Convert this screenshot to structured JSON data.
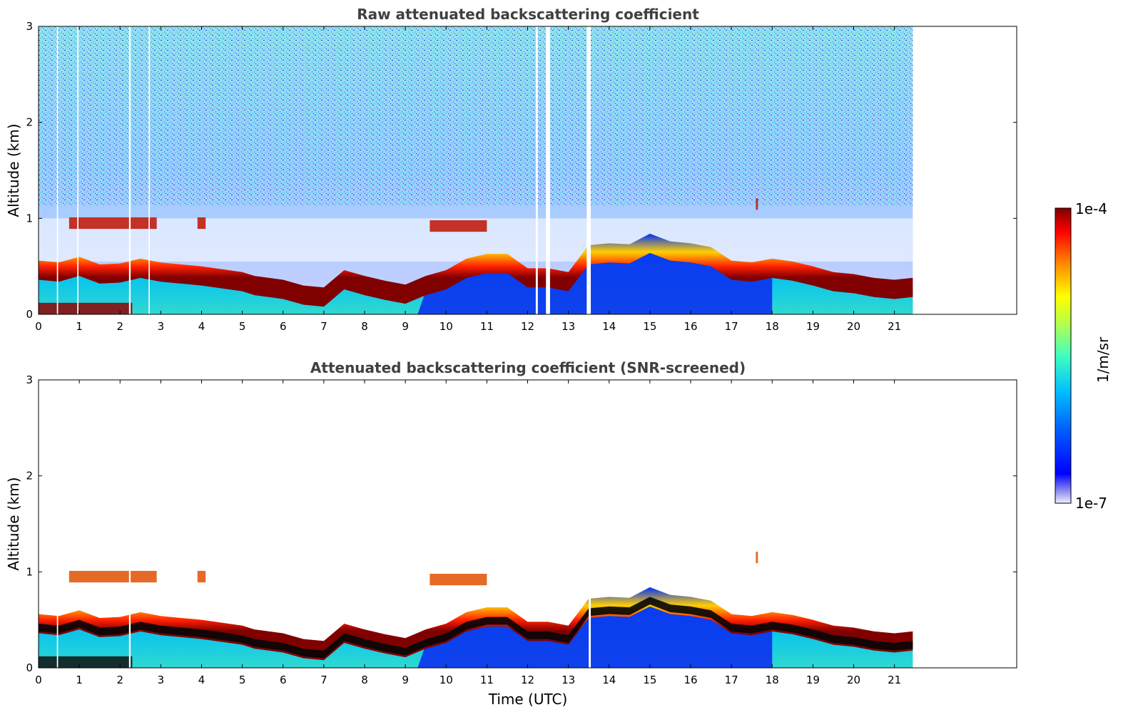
{
  "chart_data": [
    {
      "type": "heatmap",
      "title": "Raw attenuated backscattering coefficient",
      "xlabel": "",
      "ylabel": "Altitude (km)",
      "xlim": [
        0,
        24
      ],
      "ylim": [
        0,
        3
      ],
      "xticks": [
        "0",
        "1",
        "2",
        "3",
        "4",
        "5",
        "6",
        "7",
        "8",
        "9",
        "10",
        "11",
        "12",
        "13",
        "14",
        "15",
        "16",
        "17",
        "18",
        "19",
        "20",
        "21"
      ],
      "yticks": [
        "0",
        "1",
        "2",
        "3"
      ],
      "data_end_hour": 21.45,
      "layer_top_km": [
        [
          0.0,
          0.48
        ],
        [
          0.5,
          0.46
        ],
        [
          1.0,
          0.52
        ],
        [
          1.5,
          0.44
        ],
        [
          2.0,
          0.45
        ],
        [
          2.5,
          0.5
        ],
        [
          3.0,
          0.46
        ],
        [
          4.0,
          0.42
        ],
        [
          5.0,
          0.36
        ],
        [
          5.3,
          0.32
        ],
        [
          6.0,
          0.28
        ],
        [
          6.5,
          0.22
        ],
        [
          7.0,
          0.2
        ],
        [
          7.5,
          0.38
        ],
        [
          8.0,
          0.32
        ],
        [
          8.5,
          0.27
        ],
        [
          9.0,
          0.23
        ],
        [
          9.5,
          0.32
        ],
        [
          10.0,
          0.38
        ],
        [
          10.5,
          0.5
        ],
        [
          11.0,
          0.55
        ],
        [
          11.5,
          0.55
        ],
        [
          12.0,
          0.4
        ],
        [
          12.5,
          0.4
        ],
        [
          13.0,
          0.36
        ],
        [
          13.5,
          0.64
        ],
        [
          14.0,
          0.66
        ],
        [
          14.5,
          0.65
        ],
        [
          15.0,
          0.76
        ],
        [
          15.5,
          0.68
        ],
        [
          16.0,
          0.66
        ],
        [
          16.5,
          0.62
        ],
        [
          17.0,
          0.48
        ],
        [
          17.5,
          0.46
        ],
        [
          18.0,
          0.5
        ],
        [
          18.5,
          0.47
        ],
        [
          19.0,
          0.42
        ],
        [
          19.5,
          0.36
        ],
        [
          20.0,
          0.34
        ],
        [
          20.5,
          0.3
        ],
        [
          21.0,
          0.28
        ],
        [
          21.45,
          0.3
        ]
      ],
      "elevated_layers_km": [
        {
          "x": [
            0.75,
            2.9
          ],
          "alt": 0.95
        },
        {
          "x": [
            3.9,
            4.1
          ],
          "alt": 0.95
        },
        {
          "x": [
            9.6,
            11.0
          ],
          "alt": 0.92
        },
        {
          "x": [
            17.6,
            17.65
          ],
          "alt": 1.15
        }
      ]
    },
    {
      "type": "heatmap",
      "title": "Attenuated backscattering coefficient (SNR-screened)",
      "xlabel": "Time (UTC)",
      "ylabel": "Altitude (km)",
      "xlim": [
        0,
        24
      ],
      "ylim": [
        0,
        3
      ],
      "xticks": [
        "0",
        "1",
        "2",
        "3",
        "4",
        "5",
        "6",
        "7",
        "8",
        "9",
        "10",
        "11",
        "12",
        "13",
        "14",
        "15",
        "16",
        "17",
        "18",
        "19",
        "20",
        "21"
      ],
      "yticks": [
        "0",
        "1",
        "2",
        "3"
      ],
      "data_end_hour": 21.45
    }
  ],
  "colorbar": {
    "label": "1/m/sr",
    "max_label": "1e-4",
    "min_label": "1e-7",
    "colormap": "jet",
    "colors": [
      "#e8e8f8",
      "#0000ff",
      "#00a0ff",
      "#00e0e0",
      "#80ff80",
      "#ffff00",
      "#ff8000",
      "#ff0000",
      "#800000"
    ]
  }
}
